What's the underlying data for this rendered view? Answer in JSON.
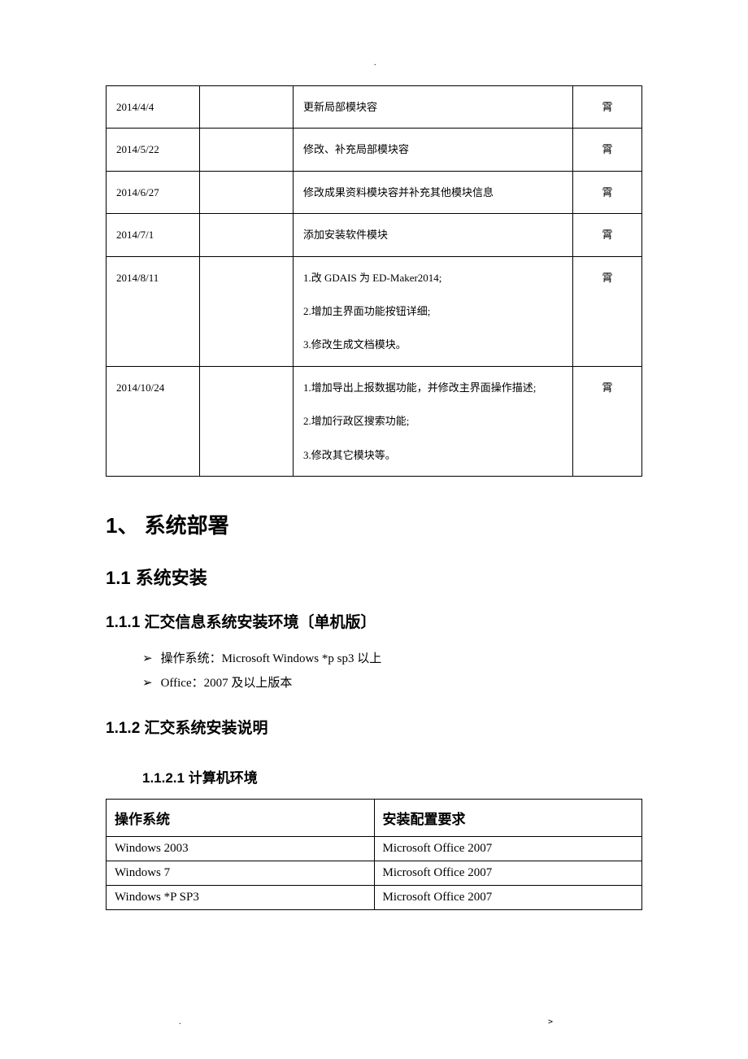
{
  "revisions": {
    "rows": [
      {
        "date": "2014/4/4",
        "blank": "",
        "desc_lines": [
          "更新局部模块容"
        ],
        "author": "霄"
      },
      {
        "date": "2014/5/22",
        "blank": "",
        "desc_lines": [
          "修改、补充局部模块容"
        ],
        "author": "霄"
      },
      {
        "date": "2014/6/27",
        "blank": "",
        "desc_lines": [
          "修改成果资料模块容并补充其他模块信息"
        ],
        "author": "霄"
      },
      {
        "date": "2014/7/1",
        "blank": "",
        "desc_lines": [
          "添加安装软件模块"
        ],
        "author": "霄"
      },
      {
        "date": "2014/8/11",
        "blank": "",
        "desc_lines": [
          "1.改 GDAIS 为 ED-Maker2014;",
          "2.增加主界面功能按钮详细;",
          "3.修改生成文档模块。"
        ],
        "author": "霄"
      },
      {
        "date": "2014/10/24",
        "blank": "",
        "desc_lines": [
          "1.增加导出上报数据功能，并修改主界面操作描述;",
          "2.增加行政区搜索功能;",
          "3.修改其它模块等。"
        ],
        "author": "霄"
      }
    ]
  },
  "headings": {
    "h1": "1、 系统部署",
    "h2": "1.1 系统安装",
    "h3_1": "1.1.1 汇交信息系统安装环境〔单机版〕",
    "h3_2": "1.1.2 汇交系统安装说明",
    "h4": "1.1.2.1 计算机环境"
  },
  "bullets": {
    "items": [
      "操作系统：Microsoft Windows *p sp3 以上",
      "Office：2007 及以上版本"
    ],
    "marker": "➢"
  },
  "env_table": {
    "headers": [
      "操作系统",
      "安装配置要求"
    ],
    "rows": [
      [
        "Windows 2003",
        "Microsoft Office 2007"
      ],
      [
        "Windows 7",
        "Microsoft Office 2007"
      ],
      [
        "Windows *P SP3",
        "Microsoft Office 2007"
      ]
    ]
  },
  "footer": {
    "left": ".",
    "right": ">",
    "top": "."
  }
}
